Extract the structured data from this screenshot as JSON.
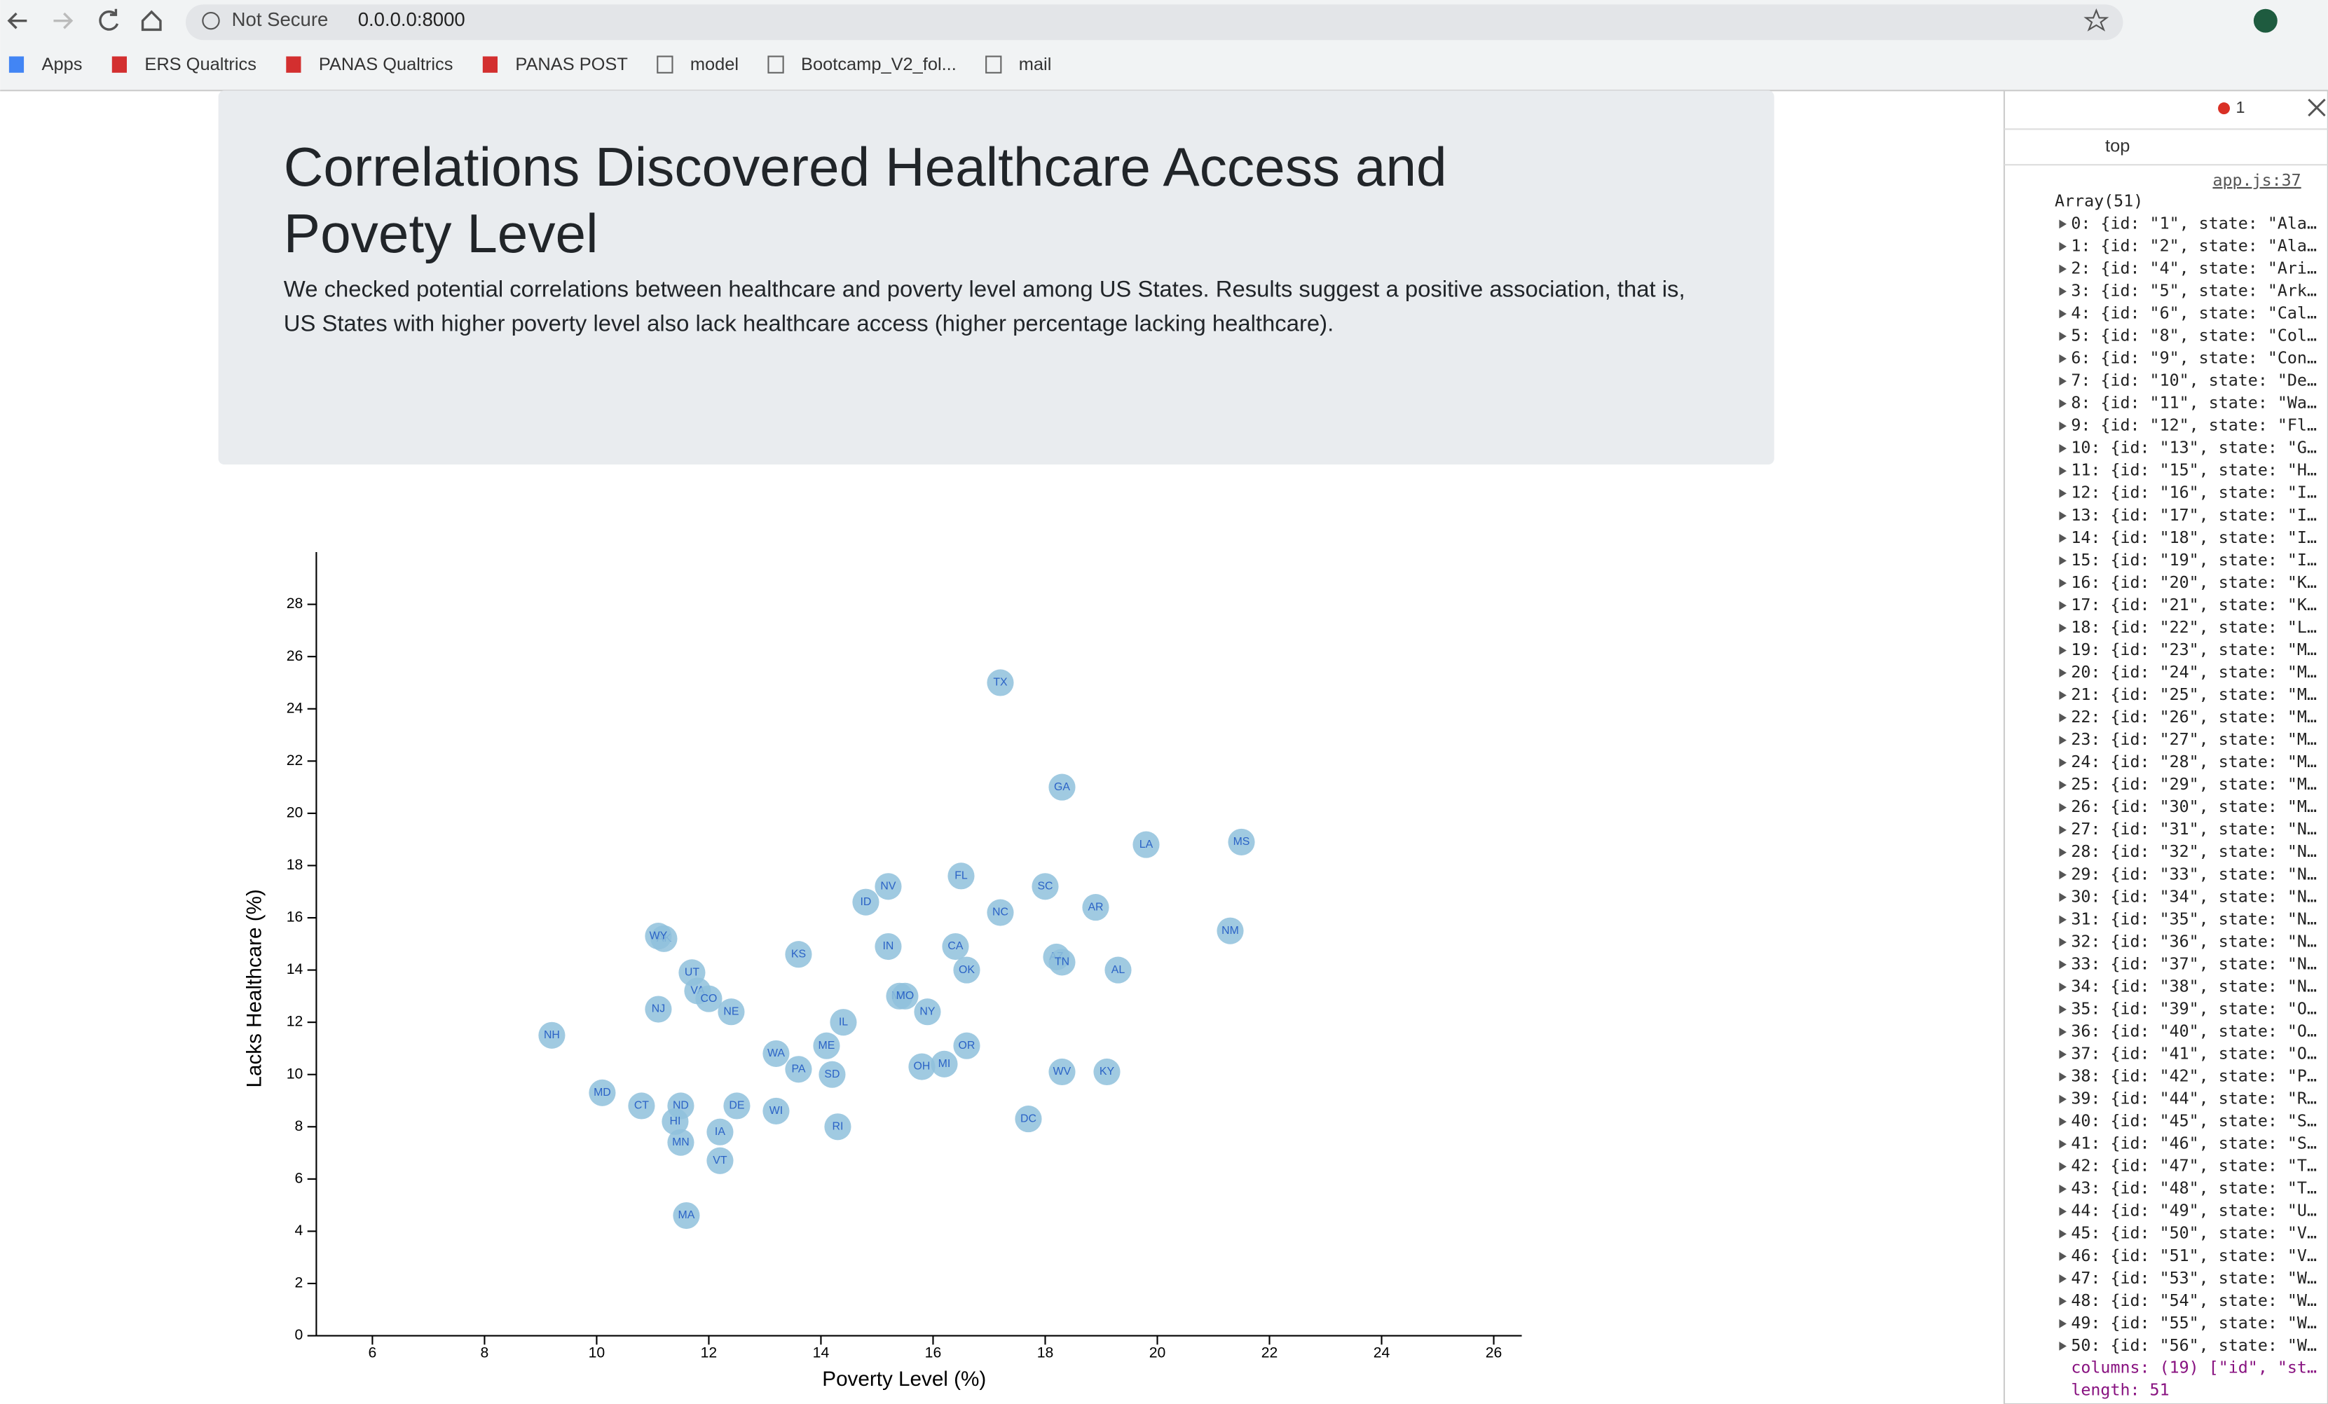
{
  "browser": {
    "security": "Not Secure",
    "url": "0.0.0.0:8000",
    "bookmarks": [
      "Apps",
      "ERS Qualtrics",
      "PANAS Qualtrics",
      "PANAS POST",
      "model",
      "Bootcamp_V2_fol...",
      "mail"
    ]
  },
  "header": {
    "title": "Correlations Discovered Healthcare Access and Povety Level",
    "description": "We checked potential correlations between healthcare and poverty level among US States. Results suggest a positive association, that is, US States with higher poverty level also lack healthcare access (higher percentage lacking healthcare)."
  },
  "chart_data": {
    "type": "scatter",
    "x_label": "Poverty Level (%)",
    "y_label": "Lacks Healthcare (%)",
    "color": "#8fc1dc",
    "label_color": "#2b63c6",
    "labels": [
      "TX",
      "GA",
      "LA",
      "MS",
      "FL",
      "NV",
      "SC",
      "ID",
      "AR",
      "NC",
      "NM",
      "AK",
      "WY",
      "KS",
      "IN",
      "CA",
      "AZ",
      "TN",
      "OK",
      "AL",
      "UT",
      "VA",
      "CO",
      "MT",
      "MO",
      "NY",
      "NJ",
      "NE",
      "IL",
      "NH",
      "ME",
      "OR",
      "WA",
      "PA",
      "OH",
      "MI",
      "SD",
      "WV",
      "KY",
      "MD",
      "CT",
      "ND",
      "DE",
      "WI",
      "DC",
      "HI",
      "RI",
      "IA",
      "MN",
      "VT",
      "MA"
    ],
    "x": [
      17.2,
      18.3,
      19.8,
      21.5,
      16.5,
      15.2,
      18.0,
      14.8,
      18.9,
      17.2,
      21.3,
      11.2,
      11.1,
      13.6,
      15.2,
      16.4,
      18.2,
      18.3,
      16.6,
      19.3,
      11.7,
      11.8,
      12.0,
      15.4,
      15.5,
      15.9,
      11.1,
      12.4,
      14.4,
      9.2,
      14.1,
      16.6,
      13.2,
      13.6,
      15.8,
      16.2,
      14.2,
      18.3,
      19.1,
      10.1,
      10.8,
      11.5,
      12.5,
      13.2,
      17.7,
      11.4,
      14.3,
      12.2,
      11.5,
      12.2,
      11.6
    ],
    "values": [
      25.0,
      21.0,
      18.8,
      18.9,
      17.6,
      17.2,
      17.2,
      16.6,
      16.4,
      16.2,
      15.5,
      15.2,
      15.3,
      14.6,
      14.9,
      14.9,
      14.5,
      14.3,
      14.0,
      14.0,
      13.9,
      13.2,
      12.9,
      13.0,
      13.0,
      12.4,
      12.5,
      12.4,
      12.0,
      11.5,
      11.1,
      11.1,
      10.8,
      10.2,
      10.3,
      10.4,
      10.0,
      10.1,
      10.1,
      9.3,
      8.8,
      8.8,
      8.8,
      8.6,
      8.3,
      8.2,
      8.0,
      7.8,
      7.4,
      6.7,
      4.6
    ],
    "xlim": [
      5,
      26.5
    ],
    "xticks": [
      6,
      8,
      10,
      12,
      14,
      16,
      18,
      20,
      22,
      24,
      26
    ],
    "ylim": [
      0,
      30
    ],
    "yticks": [
      0,
      2,
      4,
      6,
      8,
      10,
      12,
      14,
      16,
      18,
      20,
      22,
      24,
      26,
      28
    ]
  },
  "devtools": {
    "errors": "1",
    "context": "top",
    "source": "app.js:37",
    "array": "Array(51)",
    "rows": [
      "0: {id: \"1\", state: \"Ala…",
      "1: {id: \"2\", state: \"Ala…",
      "2: {id: \"4\", state: \"Ari…",
      "3: {id: \"5\", state: \"Ark…",
      "4: {id: \"6\", state: \"Cal…",
      "5: {id: \"8\", state: \"Col…",
      "6: {id: \"9\", state: \"Con…",
      "7: {id: \"10\", state: \"De…",
      "8: {id: \"11\", state: \"Wa…",
      "9: {id: \"12\", state: \"Fl…",
      "10: {id: \"13\", state: \"G…",
      "11: {id: \"15\", state: \"H…",
      "12: {id: \"16\", state: \"I…",
      "13: {id: \"17\", state: \"I…",
      "14: {id: \"18\", state: \"I…",
      "15: {id: \"19\", state: \"I…",
      "16: {id: \"20\", state: \"K…",
      "17: {id: \"21\", state: \"K…",
      "18: {id: \"22\", state: \"L…",
      "19: {id: \"23\", state: \"M…",
      "20: {id: \"24\", state: \"M…",
      "21: {id: \"25\", state: \"M…",
      "22: {id: \"26\", state: \"M…",
      "23: {id: \"27\", state: \"M…",
      "24: {id: \"28\", state: \"M…",
      "25: {id: \"29\", state: \"M…",
      "26: {id: \"30\", state: \"M…",
      "27: {id: \"31\", state: \"N…",
      "28: {id: \"32\", state: \"N…",
      "29: {id: \"33\", state: \"N…",
      "30: {id: \"34\", state: \"N…",
      "31: {id: \"35\", state: \"N…",
      "32: {id: \"36\", state: \"N…",
      "33: {id: \"37\", state: \"N…",
      "34: {id: \"38\", state: \"N…",
      "35: {id: \"39\", state: \"O…",
      "36: {id: \"40\", state: \"O…",
      "37: {id: \"41\", state: \"O…",
      "38: {id: \"42\", state: \"P…",
      "39: {id: \"44\", state: \"R…",
      "40: {id: \"45\", state: \"S…",
      "41: {id: \"46\", state: \"S…",
      "42: {id: \"47\", state: \"T…",
      "43: {id: \"48\", state: \"T…",
      "44: {id: \"49\", state: \"U…",
      "45: {id: \"50\", state: \"V…",
      "46: {id: \"51\", state: \"V…",
      "47: {id: \"53\", state: \"W…",
      "48: {id: \"54\", state: \"W…",
      "49: {id: \"55\", state: \"W…",
      "50: {id: \"56\", state: \"W…"
    ],
    "columns": "columns: (19) [\"id\", \"st…",
    "length": "length: 51"
  }
}
